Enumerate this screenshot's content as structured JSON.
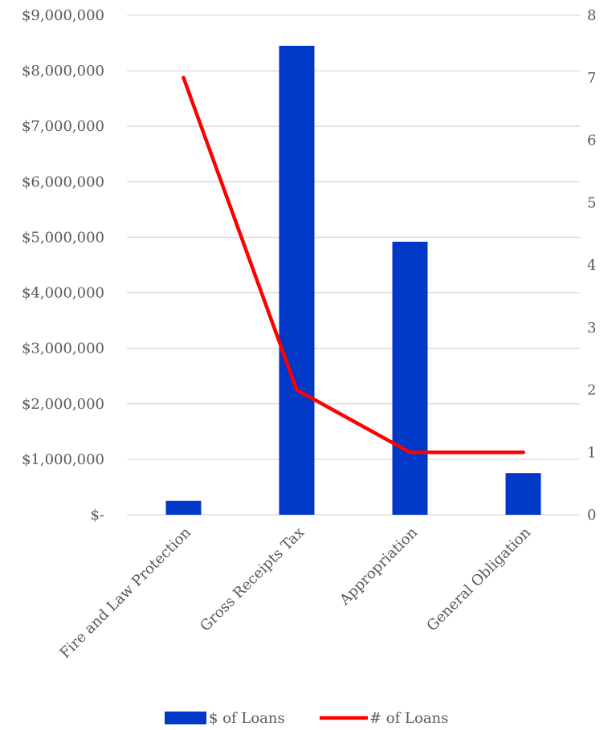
{
  "chart_data": {
    "type": "bar",
    "title": "",
    "categories": [
      "Fire and Law Protection",
      "Gross Receipts Tax",
      "Appropriation",
      "General Obligation"
    ],
    "series": [
      {
        "name": "$ of Loans",
        "kind": "bar",
        "axis": "left",
        "color": "#0038c7",
        "values": [
          250000,
          8450000,
          4920000,
          750000
        ]
      },
      {
        "name": "# of Loans",
        "kind": "line",
        "axis": "right",
        "color": "#ff0000",
        "values": [
          7,
          2,
          1,
          1
        ]
      }
    ],
    "y_left": {
      "ylim": [
        0,
        9000000
      ],
      "ticks": [
        0,
        1000000,
        2000000,
        3000000,
        4000000,
        5000000,
        6000000,
        7000000,
        8000000,
        9000000
      ],
      "tick_labels": [
        "$-",
        "$1,000,000",
        "$2,000,000",
        "$3,000,000",
        "$4,000,000",
        "$5,000,000",
        "$6,000,000",
        "$7,000,000",
        "$8,000,000",
        "$9,000,000"
      ]
    },
    "y_right": {
      "ylim": [
        0,
        8
      ],
      "ticks": [
        0,
        1,
        2,
        3,
        4,
        5,
        6,
        7,
        8
      ],
      "tick_labels": [
        "0",
        "1",
        "2",
        "3",
        "4",
        "5",
        "6",
        "7",
        "8"
      ]
    },
    "grid": true,
    "legend_position": "bottom"
  }
}
